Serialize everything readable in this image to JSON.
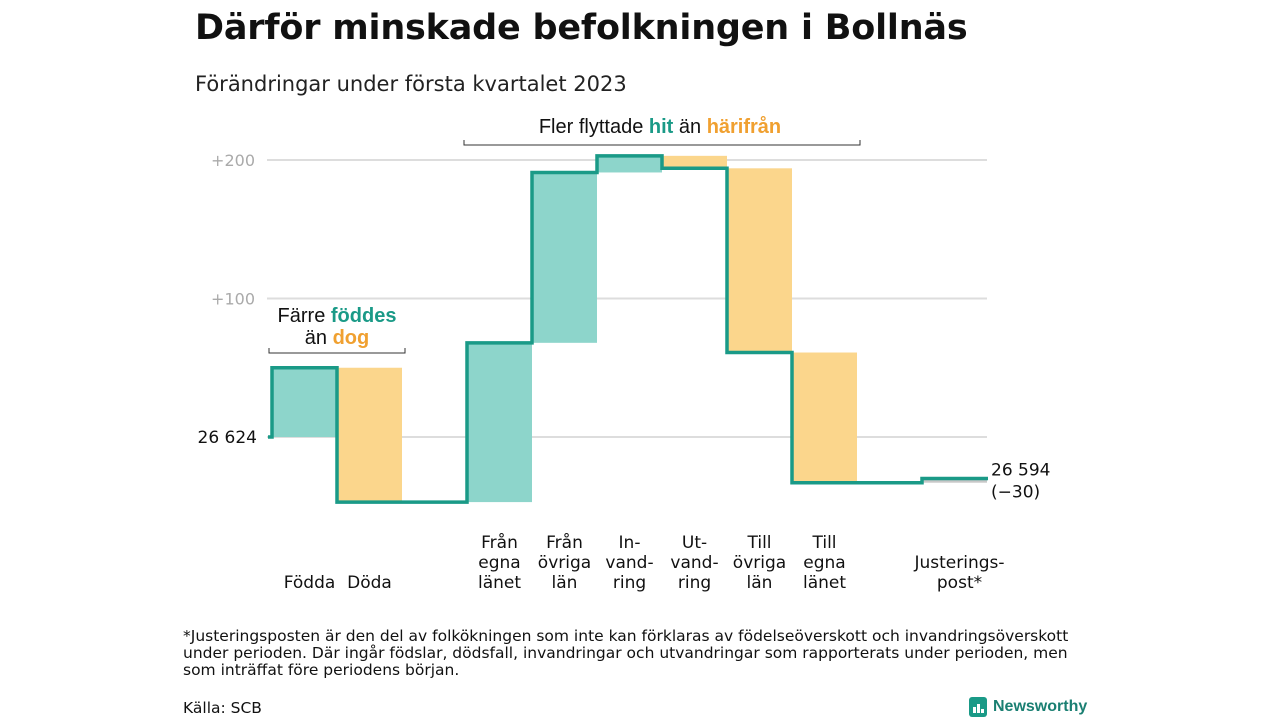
{
  "title": "Därför minskade befolkningen i Bollnäs",
  "subtitle": "Förändringar under första kvartalet 2023",
  "colors": {
    "increase": "#8dd5cb",
    "decrease": "#fbd68c",
    "adjustment": "#c8c8c8",
    "line": "#1a9a87",
    "accent_hit": "#1a9a87",
    "accent_harifran": "#f0a030",
    "grid": "#dddddd"
  },
  "chart_data": {
    "type": "waterfall",
    "baseline_label": "26 624",
    "end_label_value": "26 594",
    "end_label_change": "(−30)",
    "y_ticks": [
      "+200",
      "+100"
    ],
    "y_tick_values": [
      200,
      100
    ],
    "start": 0,
    "steps": [
      {
        "label": [
          "Födda"
        ],
        "kind": "increase",
        "change": 50
      },
      {
        "label": [
          "Döda"
        ],
        "kind": "decrease",
        "change": -97
      },
      {
        "label": [
          ""
        ],
        "kind": "none",
        "change": 0
      },
      {
        "label": [
          "Från",
          "egna",
          "länet"
        ],
        "kind": "increase",
        "change": 115
      },
      {
        "label": [
          "Från",
          "övriga",
          "län"
        ],
        "kind": "increase",
        "change": 123
      },
      {
        "label": [
          "In-",
          "vand-",
          "ring"
        ],
        "kind": "increase",
        "change": 12
      },
      {
        "label": [
          "Ut-",
          "vand-",
          "ring"
        ],
        "kind": "decrease",
        "change": -9
      },
      {
        "label": [
          "Till",
          "övriga",
          "län"
        ],
        "kind": "decrease",
        "change": -133
      },
      {
        "label": [
          "Till",
          "egna",
          "länet"
        ],
        "kind": "decrease",
        "change": -94
      },
      {
        "label": [
          ""
        ],
        "kind": "none",
        "change": 0
      },
      {
        "label": [
          "Justerings-",
          "post*"
        ],
        "kind": "adjustment",
        "change": 3
      }
    ],
    "annotations": {
      "births": {
        "line1_prefix": "Färre ",
        "line1_highlight": "föddes",
        "line2_prefix": "än ",
        "line2_highlight": "dog"
      },
      "moves": {
        "prefix": "Fler flyttade ",
        "highlight1": "hit",
        "middle": " än ",
        "highlight2": "härifrån"
      }
    }
  },
  "footnote": "*Justeringsposten är den del av folkökningen som inte kan förklaras av födelseöverskott och invandringsöverskott under perioden. Där ingår födslar, dödsfall, invandringar och utvandringar som rapporterats under perioden, men som inträffat före periodens början.",
  "source": "Källa: SCB",
  "brand": "Newsworthy",
  "icons": {
    "brand_logo": "bar-chart-logo-icon"
  }
}
